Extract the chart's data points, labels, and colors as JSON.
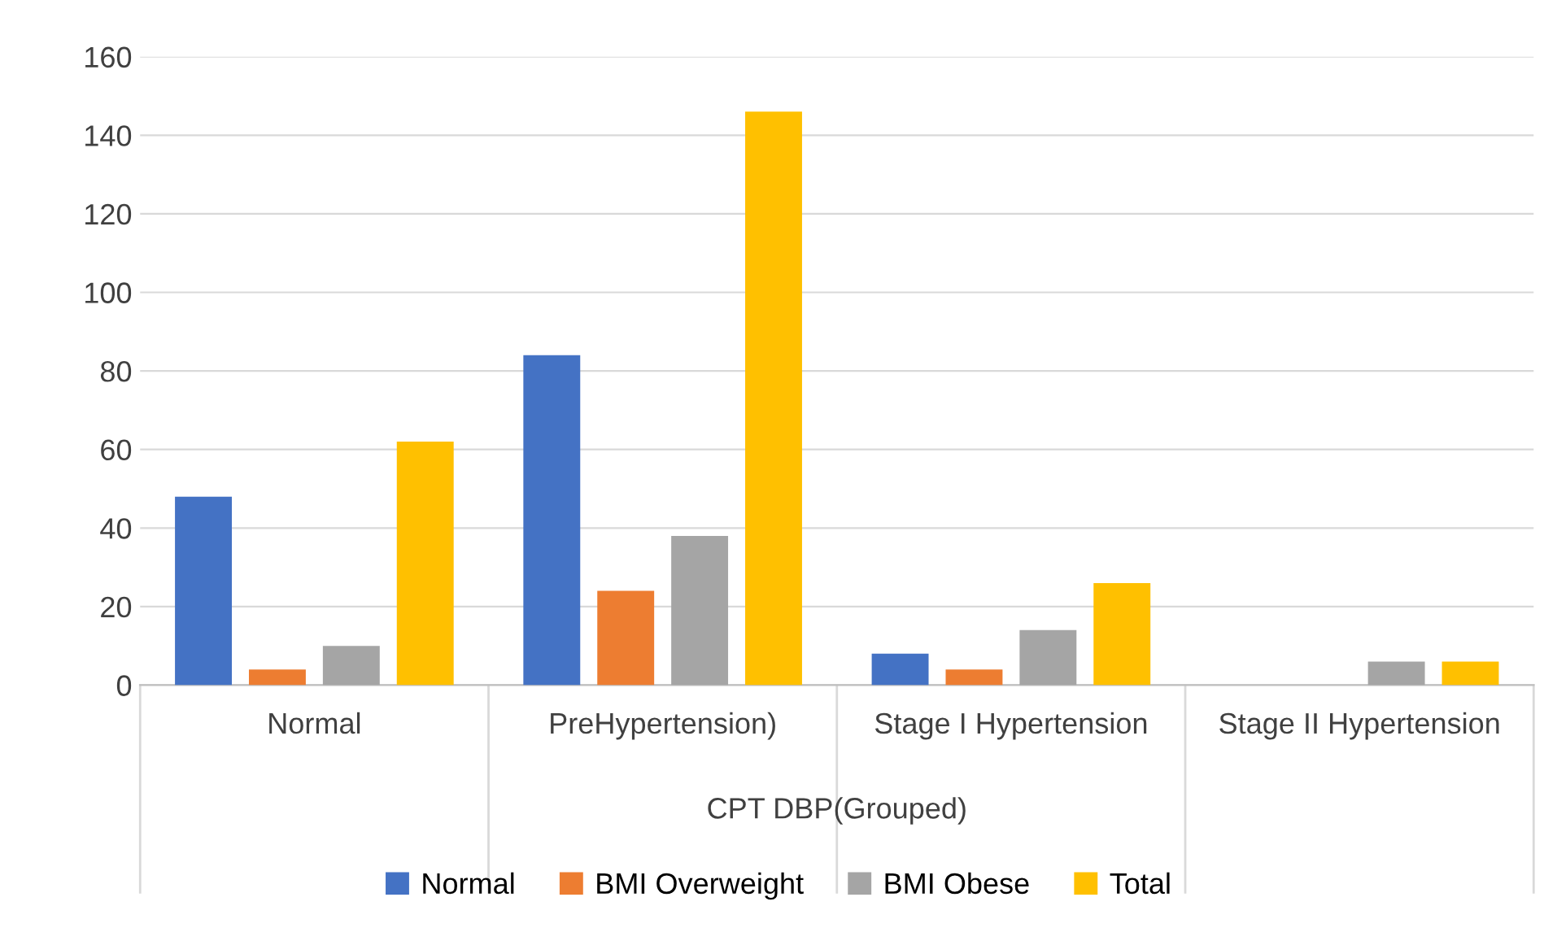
{
  "chart_data": {
    "type": "bar",
    "categories": [
      "Normal",
      "PreHypertension)",
      "Stage I Hypertension",
      "Stage II Hypertension"
    ],
    "xlabel": "CPT DBP(Grouped)",
    "series": [
      {
        "name": "Normal",
        "color": "#4472c4",
        "values": [
          48,
          84,
          8,
          0
        ]
      },
      {
        "name": "BMI Overweight",
        "color": "#ed7d31",
        "values": [
          4,
          24,
          4,
          0
        ]
      },
      {
        "name": "BMI Obese",
        "color": "#a5a5a5",
        "values": [
          10,
          38,
          14,
          6
        ]
      },
      {
        "name": "Total",
        "color": "#ffc000",
        "values": [
          62,
          146,
          26,
          6
        ]
      }
    ],
    "ylim": [
      0,
      160
    ],
    "yticks": [
      0,
      20,
      40,
      60,
      80,
      100,
      120,
      140,
      160
    ],
    "grid": "y",
    "legend": "bottom"
  }
}
